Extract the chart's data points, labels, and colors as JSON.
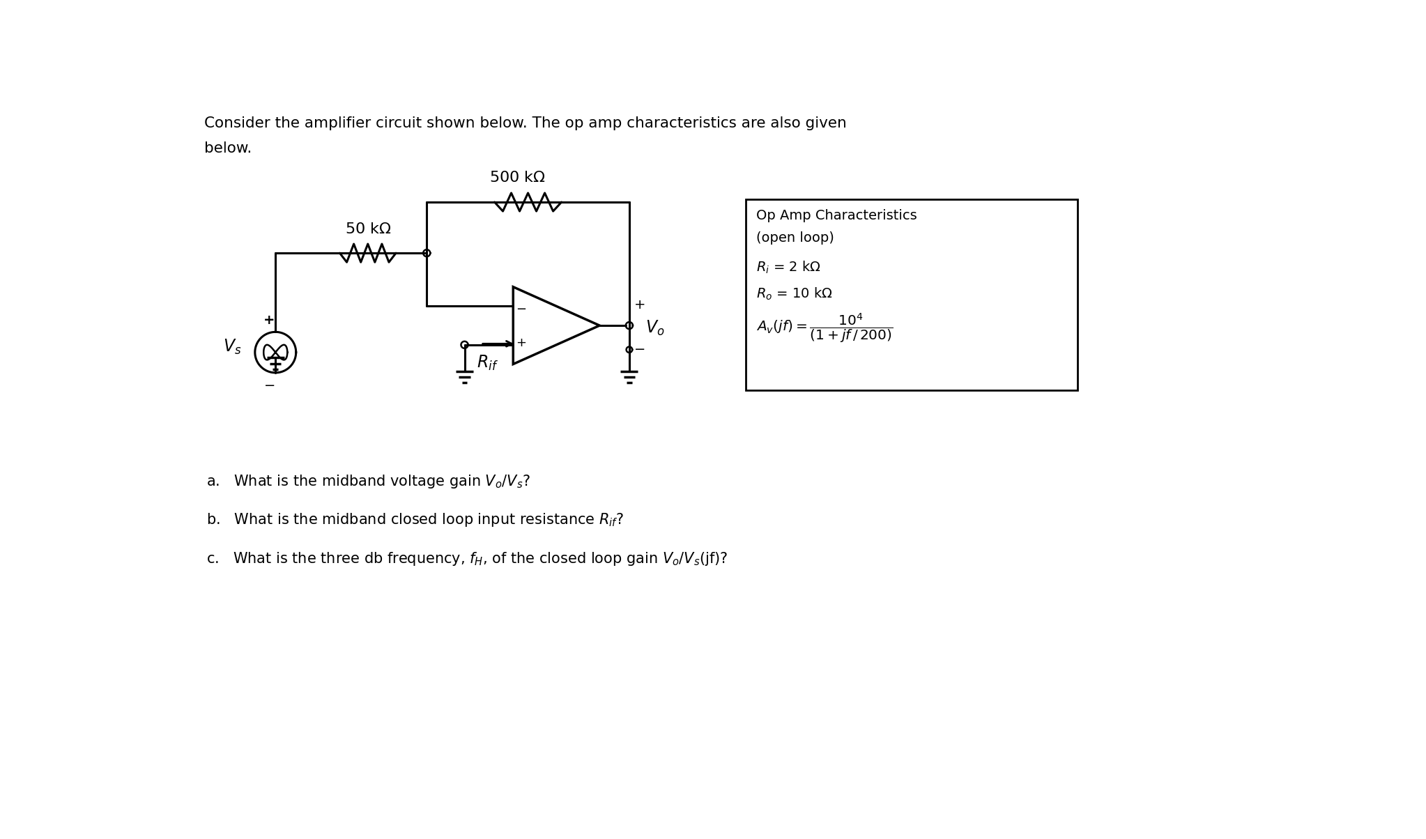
{
  "bg_color": "#ffffff",
  "figsize": [
    20.46,
    12.04
  ],
  "dpi": 100,
  "title_line1": "Consider the amplifier circuit shown below. The op amp characteristics are also given",
  "title_line2": "below.",
  "box_title": "Op Amp Characteristics",
  "box_subtitle": "(open loop)",
  "box_line1": "Rᴵ = 2 kΩ",
  "box_line2": "R₀ = 10 kΩ",
  "res1_label": "50 kΩ",
  "res2_label": "500 kΩ",
  "q1": "a.   What is the midband voltage gain V₀/Vₛ?",
  "q2": "b.   What is the midband closed loop input resistance Rᴵᶠ?",
  "q3": "c.   What is the three db frequency, fᴴ, of the closed loop gain V₀/Vₛ(jf)?"
}
